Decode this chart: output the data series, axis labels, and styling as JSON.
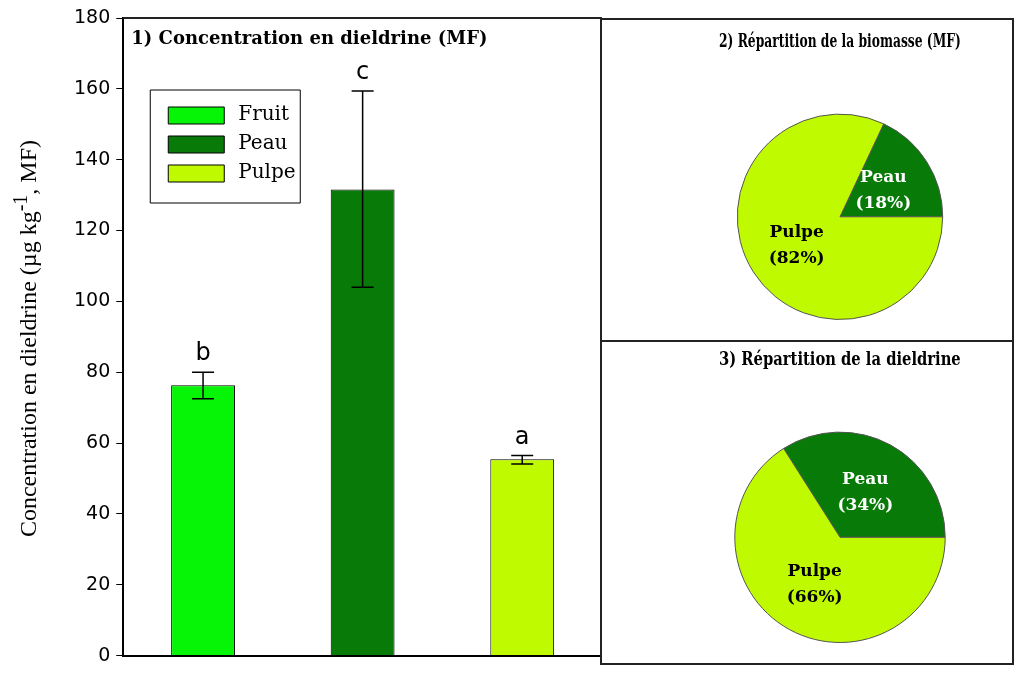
{
  "chart_data": [
    {
      "type": "bar",
      "title": "1) Concentration en dieldrine (MF)",
      "ylabel": "Concentration en dieldrine (µg kg$^{-1}$, MF)",
      "categories": [
        null,
        null,
        null
      ],
      "series": [
        {
          "name": "Fruit",
          "color": "#06f406",
          "values": [
            76.3,
            null,
            null
          ],
          "errors": [
            [
              72.5,
              80.0
            ],
            null,
            null
          ]
        },
        {
          "name": "Peau",
          "color": "#077a07",
          "values": [
            null,
            131.6,
            null
          ],
          "errors": [
            null,
            [
              104.0,
              159.4
            ],
            null
          ]
        },
        {
          "name": "Pulpe",
          "color": "#c0fa00",
          "values": [
            null,
            null,
            55.4
          ],
          "errors": [
            null,
            null,
            [
              54.1,
              56.5
            ]
          ]
        }
      ],
      "ylim": [
        0,
        180
      ],
      "yticks": [
        0,
        20,
        40,
        60,
        80,
        100,
        120,
        140,
        160,
        180
      ],
      "legend": "top left",
      "tick_labels": "y",
      "annotations": [
        {
          "text": "b",
          "y": 80.0
        },
        {
          "text": "c",
          "y": 159.4
        },
        {
          "text": "a",
          "y": 56.5
        }
      ]
    },
    {
      "type": "pie",
      "title": "2) Répartition de la biomasse (MF)",
      "categories": [
        "Peau",
        "Pulpe"
      ],
      "values": [
        18,
        82
      ],
      "colors": [
        "#077a07",
        "#c0fa00"
      ],
      "value_labels": [
        "(18%)",
        "(82%)"
      ]
    },
    {
      "type": "pie",
      "title": "3) Répartition de la dieldrine",
      "categories": [
        "Peau",
        "Pulpe"
      ],
      "values": [
        34,
        66
      ],
      "colors": [
        "#077a07",
        "#c0fa00"
      ],
      "value_labels": [
        "(34%)",
        "(66%)"
      ]
    }
  ]
}
